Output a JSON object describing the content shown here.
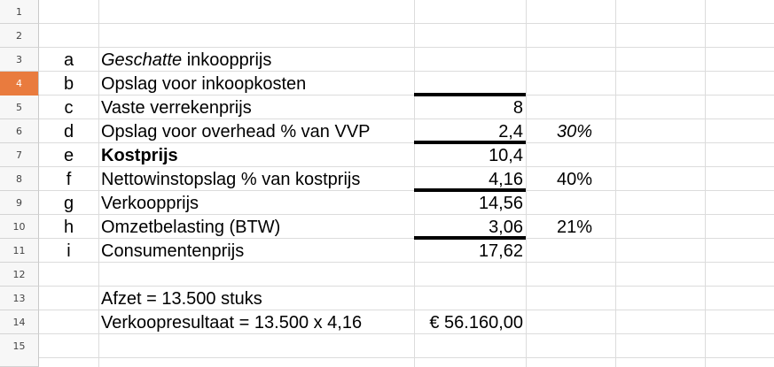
{
  "sheet": {
    "active_row": 4,
    "row_labels": [
      "1",
      "2",
      "3",
      "4",
      "5",
      "6",
      "7",
      "8",
      "9",
      "10",
      "11",
      "12",
      "13",
      "14",
      "15"
    ],
    "rows": {
      "r3": {
        "a": "a",
        "b_ital": "Geschatte",
        "b_rest": " inkoopprijs",
        "c": "",
        "d": ""
      },
      "r4": {
        "a": "b",
        "b": "Opslag voor inkoopkosten",
        "c": "",
        "d": ""
      },
      "r5": {
        "a": "c",
        "b": "Vaste verrekenprijs",
        "c": "8",
        "d": ""
      },
      "r6": {
        "a": "d",
        "b": "Opslag voor overhead % van VVP",
        "c": "2,4",
        "d": "30%"
      },
      "r7": {
        "a": "e",
        "b": "Kostprijs",
        "c": "10,4",
        "d": ""
      },
      "r8": {
        "a": "f",
        "b": "Nettowinstopslag % van kostprijs",
        "c": "4,16",
        "d": "40%"
      },
      "r9": {
        "a": "g",
        "b": "Verkoopprijs",
        "c": "14,56",
        "d": ""
      },
      "r10": {
        "a": "h",
        "b": "Omzetbelasting (BTW)",
        "c": "3,06",
        "d": "21%"
      },
      "r11": {
        "a": "i",
        "b": "Consumentenprijs",
        "c": "17,62",
        "d": ""
      },
      "r13": {
        "a": "",
        "b": "Afzet = 13.500 stuks",
        "c": "",
        "d": ""
      },
      "r14": {
        "a": "",
        "b": "Verkoopresultaat = 13.500 x 4,16",
        "c": "€ 56.160,00",
        "d": ""
      }
    },
    "colors": {
      "active_header": "#e97b3e",
      "grid": "#dcdcdc",
      "header_bg": "#f7f7f7"
    }
  }
}
